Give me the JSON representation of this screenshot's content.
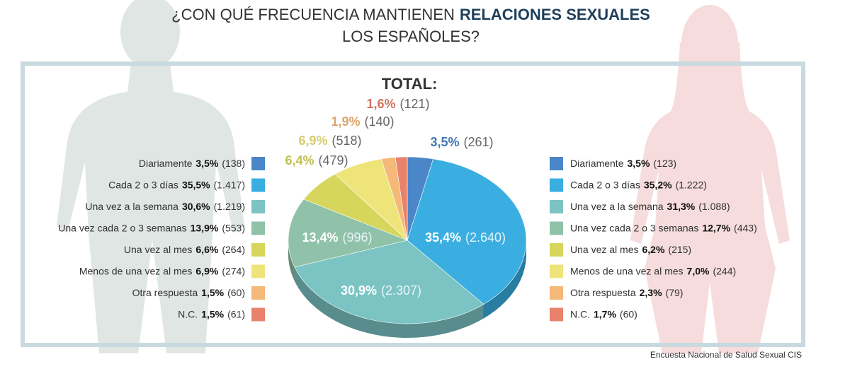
{
  "title": {
    "line1": "¿CON QUÉ FRECUENCIA MANTIENEN",
    "line1_bold": "RELACIONES SEXUALES",
    "line2": "LOS ESPAÑOLES?"
  },
  "chart_data": {
    "type": "pie",
    "title": "TOTAL:",
    "categories": [
      "Diariamente",
      "Cada 2 o 3 días",
      "Una vez a la semana",
      "Una vez cada 2 o 3 semanas",
      "Una vez al mes",
      "Menos de una vez al mes",
      "Otra respuesta",
      "N.C."
    ],
    "values": [
      3.5,
      35.4,
      30.9,
      13.4,
      6.4,
      6.9,
      1.9,
      1.6
    ],
    "value_labels": [
      "3,5%",
      "35,4%",
      "30,9%",
      "13,4%",
      "6,4%",
      "6,9%",
      "1,9%",
      "1,6%"
    ],
    "counts": [
      261,
      2640,
      2307,
      996,
      479,
      518,
      140,
      121
    ],
    "count_labels": [
      "(261)",
      "(2.640)",
      "(2.307)",
      "(996)",
      "(479)",
      "(518)",
      "(140)",
      "(121)"
    ],
    "colors": [
      "#4a86c8",
      "#3aaee0",
      "#7cc4c4",
      "#8fc2a8",
      "#d6d65c",
      "#efe47a",
      "#f4b878",
      "#e8826a"
    ]
  },
  "groups": [
    {
      "values": [
        3.5,
        35.5,
        30.6,
        13.9,
        6.6,
        6.9,
        1.5,
        1.5
      ],
      "value_labels": [
        "3,5%",
        "35,5%",
        "30,6%",
        "13,9%",
        "6,6%",
        "6,9%",
        "1,5%",
        "1,5%"
      ],
      "counts": [
        138,
        1417,
        1219,
        553,
        264,
        274,
        60,
        61
      ],
      "count_labels": [
        "(138)",
        "(1.417)",
        "(1.219)",
        "(553)",
        "(264)",
        "(274)",
        "(60)",
        "(61)"
      ]
    },
    {
      "values": [
        3.5,
        35.2,
        31.3,
        12.7,
        6.2,
        7.0,
        2.3,
        1.7
      ],
      "value_labels": [
        "3,5%",
        "35,2%",
        "31,3%",
        "12,7%",
        "6,2%",
        "7,0%",
        "2,3%",
        "1,7%"
      ],
      "counts": [
        123,
        1222,
        1088,
        443,
        215,
        244,
        79,
        60
      ],
      "count_labels": [
        "(123)",
        "(1.222)",
        "(1.088)",
        "(443)",
        "(215)",
        "(244)",
        "(79)",
        "(60)"
      ]
    }
  ],
  "source": "Encuesta Nacional de Salud Sexual CIS"
}
